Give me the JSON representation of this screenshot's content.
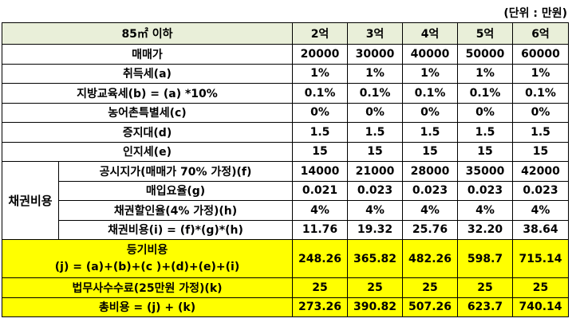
{
  "unit_label": "(단위 : 만원)",
  "header": {
    "label": "85㎡ 이하",
    "columns": [
      "2억",
      "3억",
      "4억",
      "5억",
      "6억"
    ]
  },
  "rows_top": [
    {
      "label": "매매가",
      "values": [
        "20000",
        "30000",
        "40000",
        "50000",
        "60000"
      ]
    },
    {
      "label": "취득세(a)",
      "values": [
        "1%",
        "1%",
        "1%",
        "1%",
        "1%"
      ]
    },
    {
      "label": "지방교육세(b) = (a) *10%",
      "values": [
        "0.1%",
        "0.1%",
        "0.1%",
        "0.1%",
        "0.1%"
      ]
    },
    {
      "label": "농어촌특별세(c)",
      "values": [
        "0%",
        "0%",
        "0%",
        "0%",
        "0%"
      ]
    },
    {
      "label": "증지대(d)",
      "values": [
        "1.5",
        "1.5",
        "1.5",
        "1.5",
        "1.5"
      ]
    },
    {
      "label": "인지세(e)",
      "values": [
        "15",
        "15",
        "15",
        "15",
        "15"
      ]
    }
  ],
  "bond_group": {
    "label": "채권비용",
    "rows": [
      {
        "label": "공시지가(매매가 70% 가정)(f)",
        "values": [
          "14000",
          "21000",
          "28000",
          "35000",
          "42000"
        ]
      },
      {
        "label": "매입요율(g)",
        "values": [
          "0.021",
          "0.023",
          "0.023",
          "0.023",
          "0.023"
        ]
      },
      {
        "label": "채권할인율(4% 가정)(h)",
        "values": [
          "4%",
          "4%",
          "4%",
          "4%",
          "4%"
        ]
      },
      {
        "label": "채권비용(i) = (f)*(g)*(h)",
        "values": [
          "11.76",
          "19.32",
          "25.76",
          "32.20",
          "38.64"
        ]
      }
    ]
  },
  "registration": {
    "label_line1": "등기비용",
    "label_line2": "(j) = (a)+(b)+(c )+(d)+(e)+(i)",
    "values": [
      "248.26",
      "365.82",
      "482.26",
      "598.7",
      "715.14"
    ]
  },
  "legal_fee": {
    "label": "법무사수수료(25만원 가정)(k)",
    "values": [
      "25",
      "25",
      "25",
      "25",
      "25"
    ]
  },
  "total": {
    "label": "총비용 = (j) + (k)",
    "values": [
      "273.26",
      "390.82",
      "507.26",
      "623.7",
      "740.14"
    ]
  },
  "colors": {
    "header_bg": "#e9efd9",
    "highlight_bg": "#ffff00"
  }
}
